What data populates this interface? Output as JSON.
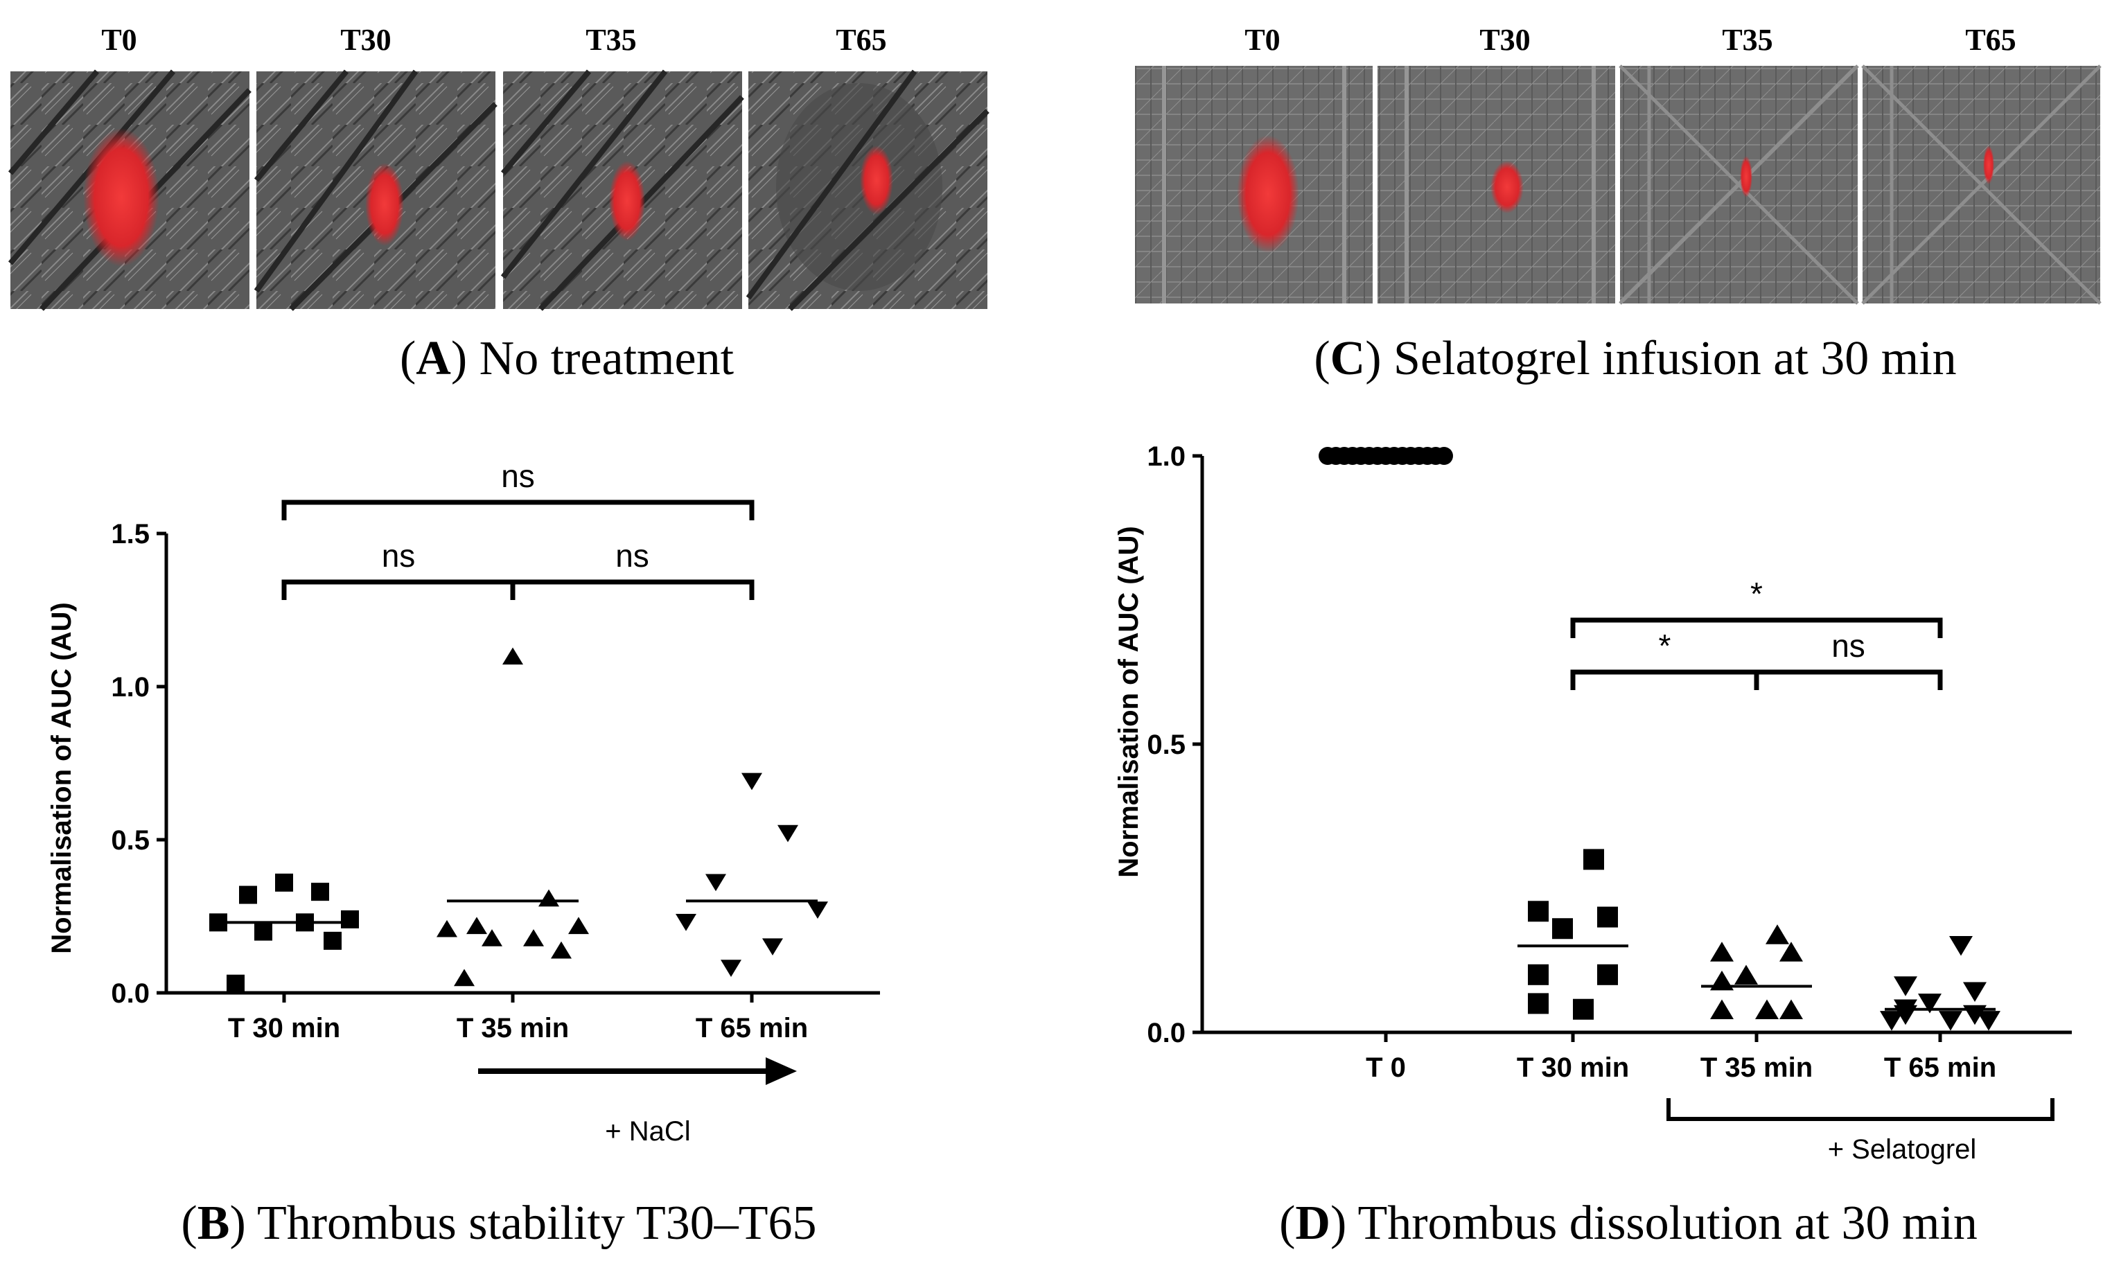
{
  "panels": {
    "A": {
      "caption_letter": "A",
      "caption_text": " No treatment",
      "time_labels": [
        "T0",
        "T30",
        "T35",
        "T65"
      ]
    },
    "C": {
      "caption_letter": "C",
      "caption_text": " Selatogrel infusion at 30 min",
      "time_labels": [
        "T0",
        "T30",
        "T35",
        "T65"
      ]
    },
    "B": {
      "caption_letter": "B",
      "caption_text": " Thrombus stability T30–T65",
      "arrow_label": "+ NaCl"
    },
    "D": {
      "caption_letter": "D",
      "caption_text": " Thrombus dissolution at 30 min",
      "bracket_label": "+ Selatogrel"
    }
  },
  "colors": {
    "thrombus_red": "#e8262b",
    "axis": "#000000",
    "micro_bg": "#585858"
  },
  "chart_data": [
    {
      "id": "B",
      "type": "scatter",
      "title": "",
      "xlabel": "",
      "ylabel": "Normalisation of AUC (AU)",
      "ylim": [
        0.0,
        1.5
      ],
      "yticks": [
        0.0,
        0.5,
        1.0,
        1.5
      ],
      "ytick_labels": [
        "0.0",
        "0.5",
        "1.0",
        "1.5"
      ],
      "categories": [
        "T 30 min",
        "T 35 min",
        "T 65 min"
      ],
      "series": [
        {
          "name": "T 30 min",
          "marker": "square",
          "values": [
            0.36,
            0.33,
            0.32,
            0.24,
            0.23,
            0.23,
            0.2,
            0.17,
            0.03
          ],
          "mean": 0.23
        },
        {
          "name": "T 35 min",
          "marker": "triangle-up",
          "values": [
            1.1,
            0.31,
            0.22,
            0.22,
            0.21,
            0.18,
            0.18,
            0.14,
            0.05
          ],
          "mean": 0.3
        },
        {
          "name": "T 65 min",
          "marker": "triangle-down",
          "values": [
            0.69,
            0.52,
            0.36,
            0.27,
            0.23,
            0.15,
            0.08
          ],
          "mean": 0.3
        }
      ],
      "comparisons": [
        {
          "from": "T 30 min",
          "to": "T 65 min",
          "label": "ns"
        },
        {
          "from": "T 30 min",
          "to": "T 35 min",
          "label": "ns"
        },
        {
          "from": "T 35 min",
          "to": "T 65 min",
          "label": "ns"
        }
      ]
    },
    {
      "id": "D",
      "type": "scatter",
      "title": "",
      "xlabel": "",
      "ylabel": "Normalisation of AUC (AU)",
      "ylim": [
        0.0,
        1.0
      ],
      "yticks": [
        0.0,
        0.5,
        1.0
      ],
      "ytick_labels": [
        "0.0",
        "0.5",
        "1.0"
      ],
      "categories": [
        "T 0",
        "T 30 min",
        "T 35 min",
        "T 65 min"
      ],
      "series": [
        {
          "name": "T 0",
          "marker": "circle",
          "values": [
            1.0,
            1.0,
            1.0,
            1.0,
            1.0,
            1.0,
            1.0,
            1.0,
            1.0,
            1.0,
            1.0,
            1.0,
            1.0,
            1.0,
            1.0
          ],
          "mean": null
        },
        {
          "name": "T 30 min",
          "marker": "square",
          "values": [
            0.3,
            0.21,
            0.2,
            0.18,
            0.1,
            0.1,
            0.05,
            0.04
          ],
          "mean": 0.15
        },
        {
          "name": "T 35 min",
          "marker": "triangle-up",
          "values": [
            0.17,
            0.14,
            0.14,
            0.1,
            0.09,
            0.04,
            0.04,
            0.04
          ],
          "mean": 0.08
        },
        {
          "name": "T 65 min",
          "marker": "triangle-down",
          "values": [
            0.15,
            0.08,
            0.07,
            0.05,
            0.04,
            0.03,
            0.03,
            0.02,
            0.02,
            0.02
          ],
          "mean": 0.04
        }
      ],
      "comparisons": [
        {
          "from": "T 30 min",
          "to": "T 65 min",
          "label": "*"
        },
        {
          "from": "T 30 min",
          "to": "T 35 min",
          "label": "*"
        },
        {
          "from": "T 35 min",
          "to": "T 65 min",
          "label": "ns"
        }
      ]
    }
  ]
}
